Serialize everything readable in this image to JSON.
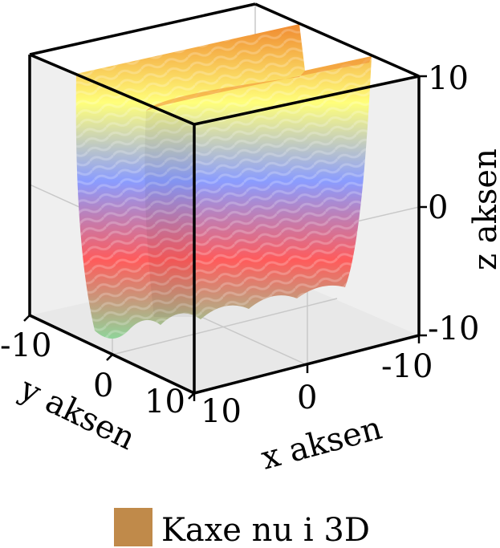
{
  "chart_data": {
    "type": "surface3d",
    "title": "",
    "xlabel": "x aksen",
    "ylabel": "y aksen",
    "zlabel": "z aksen",
    "xlim": [
      -10,
      10
    ],
    "ylim": [
      -10,
      10
    ],
    "zlim": [
      -10,
      10
    ],
    "x_ticks": [
      "-10",
      "0",
      "10"
    ],
    "y_ticks": [
      "-10",
      "0",
      "10"
    ],
    "z_ticks": [
      "-10",
      "0",
      "10"
    ],
    "grid": true,
    "colormap": [
      "#90d49a",
      "#ff5b5b",
      "#8a9cff",
      "#ffff7a",
      "#f08a30"
    ],
    "legend": {
      "entries": [
        {
          "name": "Kaxe nu i 3D",
          "color": "#c08a4a"
        }
      ],
      "position": "bottom"
    }
  }
}
